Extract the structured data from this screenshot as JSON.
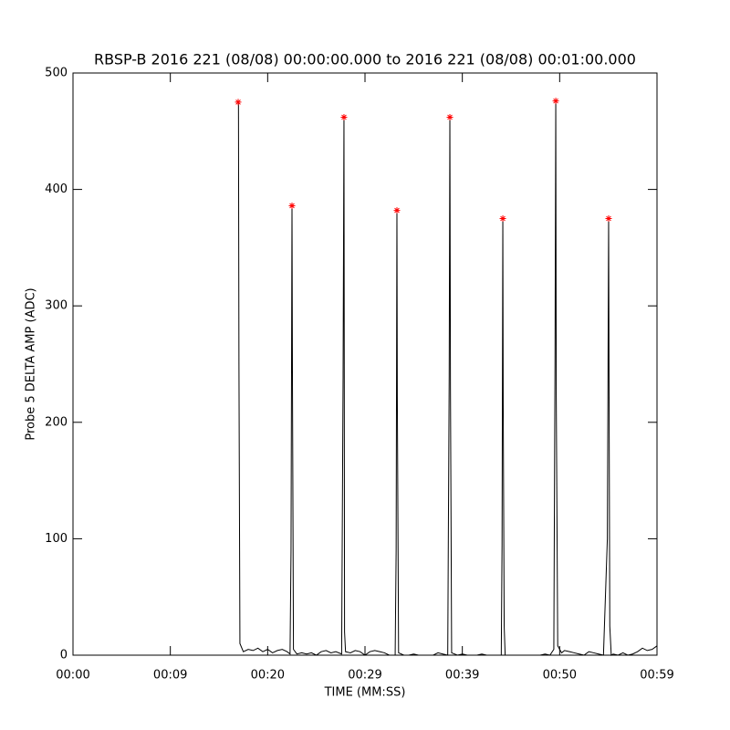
{
  "chart_data": {
    "type": "line",
    "title": "RBSP-B 2016 221 (08/08) 00:00:00.000 to 2016 221 (08/08) 00:01:00.000",
    "x_label": "TIME (MM:SS)",
    "y_label": "Probe 5 DELTA AMP (ADC)",
    "xlim": [
      0,
      60
    ],
    "ylim": [
      0,
      500
    ],
    "xticks": [
      {
        "value": 0,
        "label": "00:00"
      },
      {
        "value": 10,
        "label": "00:09"
      },
      {
        "value": 20,
        "label": "00:20"
      },
      {
        "value": 30,
        "label": "00:29"
      },
      {
        "value": 40,
        "label": "00:39"
      },
      {
        "value": 50,
        "label": "00:50"
      },
      {
        "value": 60,
        "label": "00:59"
      }
    ],
    "yticks": [
      0,
      100,
      200,
      300,
      400,
      500
    ],
    "series": [
      {
        "color": "#000000",
        "marker": "none",
        "x": [
          17.0,
          17.05,
          17.15,
          17.5,
          18.0,
          18.5,
          19.0,
          19.5,
          20.0,
          20.5,
          21.0,
          21.5,
          22.0,
          22.3,
          22.4,
          22.5,
          22.55,
          22.65,
          23.0,
          23.5,
          24.0,
          24.5,
          25.0,
          25.5,
          26.0,
          26.5,
          27.0,
          27.6,
          27.75,
          27.84,
          27.9,
          28.0,
          28.5,
          29.0,
          29.5,
          30.0,
          30.5,
          31.0,
          31.5,
          32.0,
          32.5,
          33.1,
          33.2,
          33.28,
          33.32,
          33.45,
          34.0,
          34.5,
          35.0,
          35.5,
          36.0,
          36.5,
          37.0,
          37.5,
          38.0,
          38.5,
          38.65,
          38.72,
          38.78,
          38.9,
          39.5,
          40.0,
          40.5,
          41.0,
          41.5,
          42.0,
          42.5,
          43.5,
          44.0,
          44.08,
          44.16,
          44.2,
          44.3,
          44.4,
          45.0,
          46.0,
          47.0,
          48.0,
          48.5,
          49.0,
          49.4,
          49.52,
          49.6,
          49.65,
          49.8,
          50.2,
          50.5,
          51.0,
          51.5,
          52.0,
          52.5,
          53.0,
          53.5,
          54.0,
          54.5,
          54.9,
          55.03,
          55.08,
          55.15,
          55.3,
          55.5,
          56.0,
          56.5,
          57.0,
          57.5,
          58.0,
          58.5,
          59.0,
          59.5,
          60.0
        ],
        "values": [
          475,
          250,
          10,
          3,
          5,
          4,
          6,
          3,
          5,
          2,
          4,
          5,
          3,
          1,
          90,
          386,
          230,
          5,
          1,
          2,
          1,
          2,
          0,
          3,
          4,
          2,
          3,
          1,
          240,
          462,
          20,
          3,
          2,
          4,
          3,
          0,
          3,
          4,
          3,
          2,
          0,
          0,
          90,
          382,
          222,
          2,
          0,
          0,
          1,
          0,
          0,
          0,
          0,
          2,
          1,
          0,
          240,
          462,
          230,
          2,
          0,
          1,
          0,
          0,
          0,
          1,
          0,
          0,
          0,
          95,
          375,
          215,
          25,
          0,
          0,
          0,
          0,
          0,
          1,
          0,
          5,
          250,
          476,
          222,
          8,
          2,
          4,
          3,
          2,
          1,
          0,
          3,
          2,
          1,
          0,
          100,
          375,
          213,
          25,
          0,
          1,
          0,
          2,
          0,
          1,
          3,
          6,
          4,
          5,
          8
        ]
      },
      {
        "color": "#ff0000",
        "marker": "asterisk",
        "x": [
          16.97,
          22.5,
          27.84,
          33.28,
          38.72,
          44.16,
          49.6,
          55.03
        ],
        "values": [
          475,
          386,
          462,
          382,
          462,
          375,
          476,
          375
        ]
      }
    ]
  }
}
